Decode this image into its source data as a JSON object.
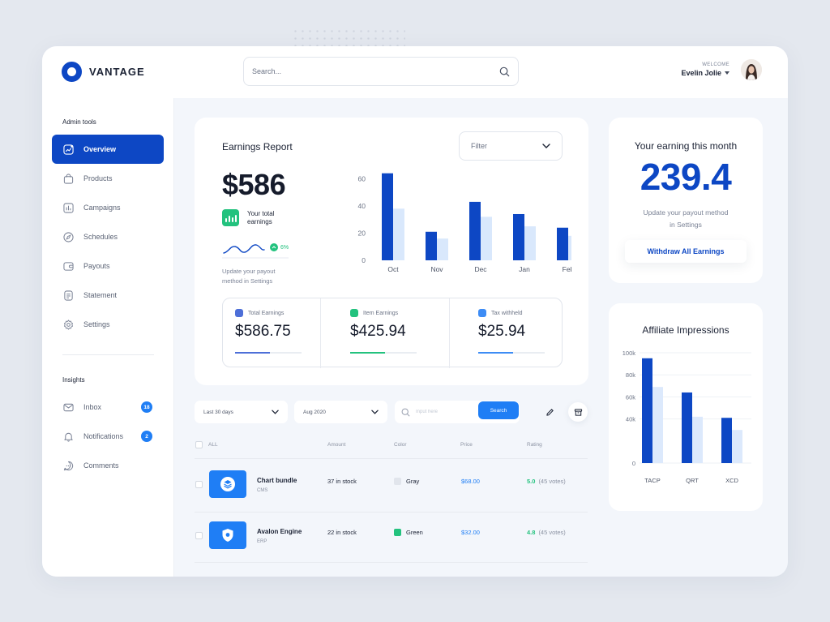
{
  "brand": {
    "name": "VANTAGE"
  },
  "header": {
    "search_placeholder": "Search...",
    "welcome": "WELCOME",
    "user_name": "Evelin Jolie"
  },
  "sidebar": {
    "admin_title": "Admin tools",
    "admin_items": [
      {
        "label": "Overview",
        "icon": "chart-trend-icon",
        "active": true
      },
      {
        "label": "Products",
        "icon": "bag-icon"
      },
      {
        "label": "Campaigns",
        "icon": "bar-chart-icon"
      },
      {
        "label": "Schedules",
        "icon": "compass-icon"
      },
      {
        "label": "Payouts",
        "icon": "wallet-icon"
      },
      {
        "label": "Statement",
        "icon": "document-icon"
      },
      {
        "label": "Settings",
        "icon": "gear-icon"
      }
    ],
    "insights_title": "Insights",
    "insights_items": [
      {
        "label": "Inbox",
        "icon": "mail-icon",
        "badge": "18"
      },
      {
        "label": "Notifications",
        "icon": "bell-icon",
        "badge": "2"
      },
      {
        "label": "Comments",
        "icon": "chat-icon"
      }
    ]
  },
  "earnings": {
    "title": "Earnings Report",
    "filter_label": "Filter",
    "amount": "$586",
    "total_label": "Your total earnings",
    "trend": "6%",
    "note": "Update your payout method in Settings",
    "stats": [
      {
        "label": "Total Earnings",
        "value": "$586.75",
        "color": "#4d6fd8"
      },
      {
        "label": "Item Earnings",
        "value": "$425.94",
        "color": "#23c27e"
      },
      {
        "label": "Tax withheld",
        "value": "$25.94",
        "color": "#3d8cf5"
      }
    ]
  },
  "month_card": {
    "title": "Your earning this month",
    "value": "239.4",
    "note": "Update your payout method in Settings",
    "button": "Withdraw All Earnings"
  },
  "affiliate": {
    "title": "Affiliate Impressions"
  },
  "chart_data": [
    {
      "type": "bar",
      "categories": [
        "Oct",
        "Nov",
        "Dec",
        "Jan",
        "Feb"
      ],
      "series": [
        {
          "values": [
            64,
            21,
            43,
            34,
            24
          ],
          "color": "#0d47c4"
        },
        {
          "values": [
            38,
            16,
            32,
            25,
            18
          ],
          "color": "#d9e8fc"
        }
      ],
      "yticks": [
        0,
        20,
        40,
        60
      ],
      "ylim": [
        0,
        65
      ],
      "grid": false
    },
    {
      "type": "bar",
      "categories": [
        "TACP",
        "QRT",
        "XCD"
      ],
      "series": [
        {
          "values": [
            95,
            64,
            41
          ],
          "color": "#0d47c4"
        },
        {
          "values": [
            69,
            42,
            30
          ],
          "color": "#dce9fc"
        }
      ],
      "yticks": [
        "0",
        "40k",
        "60k",
        "80k",
        "100k"
      ],
      "ytick_values": [
        0,
        40,
        60,
        80,
        100
      ],
      "ylim": [
        0,
        100
      ],
      "grid": true
    }
  ],
  "toolbar": {
    "period": "Last 30 days",
    "month": "Aug 2020",
    "search_placeholder": "Input here",
    "search_button": "Search"
  },
  "table": {
    "headers": {
      "all": "ALL",
      "amount": "Amount",
      "color": "Color",
      "price": "Price",
      "rating": "Rating"
    },
    "rows": [
      {
        "name": "Chart bundle",
        "category": "CMS",
        "amount": "37 in stock",
        "color_name": "Gray",
        "color": "#e1e5ec",
        "price": "$68.00",
        "rating": "5.0",
        "votes": "(45 votes)",
        "icon": "layers-icon"
      },
      {
        "name": "Avalon Engine",
        "category": "ERP",
        "amount": "22 in stock",
        "color_name": "Green",
        "color": "#23c27e",
        "price": "$32.00",
        "rating": "4.8",
        "votes": "(45 votes)",
        "icon": "shield-icon"
      }
    ]
  }
}
